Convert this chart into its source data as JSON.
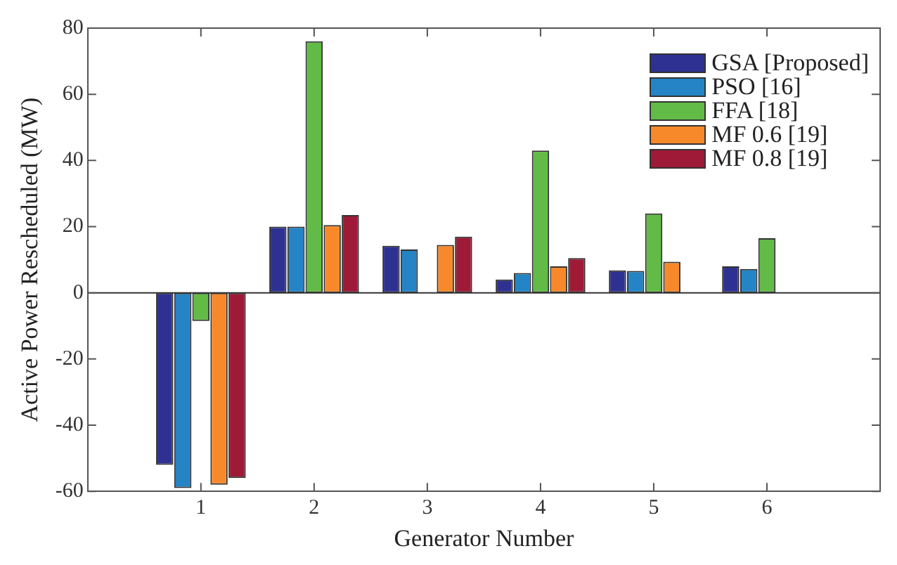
{
  "chart_data": {
    "type": "bar",
    "xlabel": "Generator Number",
    "ylabel": "Active Power Rescheduled (MW)",
    "x": [
      1,
      2,
      3,
      4,
      5,
      6
    ],
    "xlim": [
      0,
      7
    ],
    "xticks": [
      1,
      2,
      3,
      4,
      5,
      6
    ],
    "ylim": [
      -60,
      80
    ],
    "yticks": [
      -60,
      -40,
      -20,
      0,
      20,
      40,
      60,
      80
    ],
    "grid": false,
    "ref_lines": [
      {
        "axis": "y",
        "value": 0,
        "color": "#333333"
      }
    ],
    "legend": "top right",
    "series": [
      {
        "name": "GSA [Proposed]",
        "color": "#2e3192",
        "values": [
          -52,
          20,
          14.2,
          4,
          6.8,
          8
        ]
      },
      {
        "name": "PSO [16]",
        "color": "#2484c6",
        "values": [
          -59,
          20,
          13.1,
          6,
          6.6,
          7.2
        ]
      },
      {
        "name": "FFA [18]",
        "color": "#62bb46",
        "values": [
          -8.5,
          76,
          0,
          43,
          24,
          16.5
        ]
      },
      {
        "name": "MF 0.6 [19]",
        "color": "#f7892b",
        "values": [
          -58,
          20.5,
          14.5,
          8,
          9.4,
          0
        ]
      },
      {
        "name": "MF 0.8 [19]",
        "color": "#9e1a36",
        "values": [
          -56,
          23.5,
          17,
          10.5,
          0,
          0
        ]
      }
    ]
  }
}
